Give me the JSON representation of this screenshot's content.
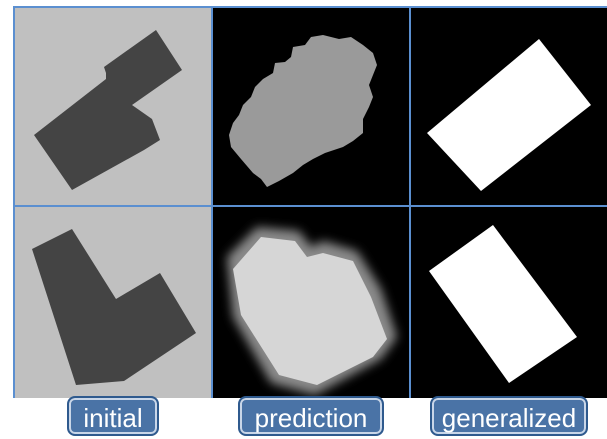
{
  "columns": [
    {
      "label": "initial"
    },
    {
      "label": "prediction"
    },
    {
      "label": "generalized"
    }
  ],
  "colors": {
    "initial_background": "#c0c0c0",
    "initial_shape": "#444444",
    "prediction_background": "#000000",
    "prediction_shape": "#9a9a9a",
    "generalized_background": "#000000",
    "generalized_shape": "#ffffff",
    "grid_line": "#5b8fd0",
    "label_background": "#4a73a6",
    "label_text": "#ffffff"
  }
}
